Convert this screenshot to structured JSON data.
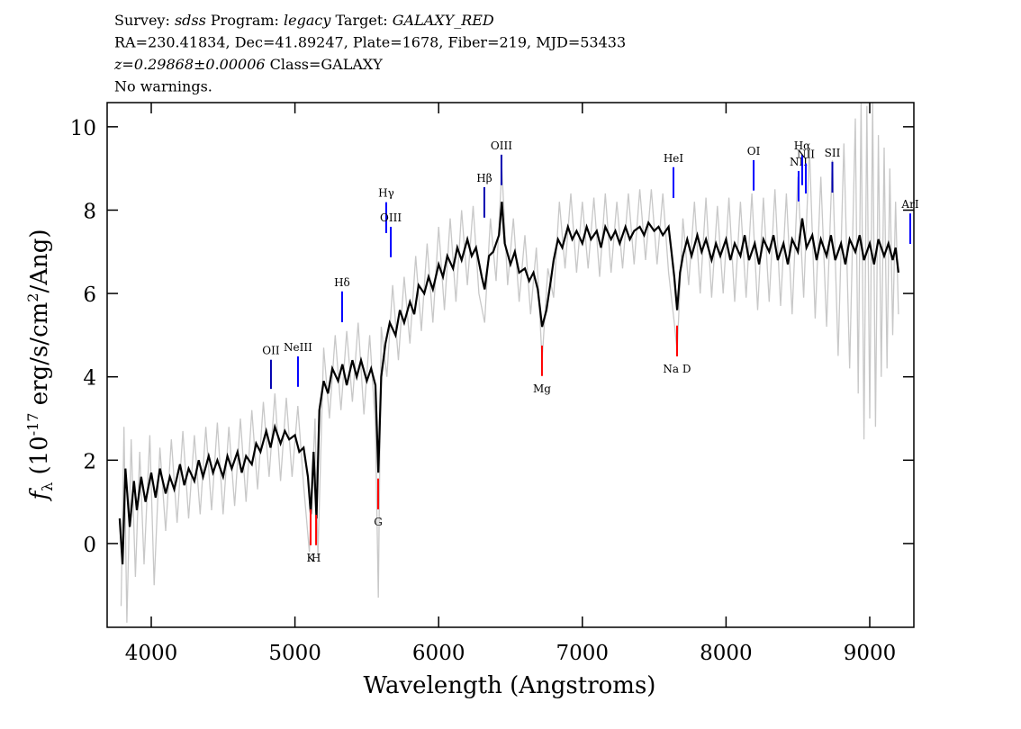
{
  "chart_data": {
    "type": "line",
    "header": [
      [
        {
          "text": "Survey: "
        },
        {
          "text": "sdss",
          "italic": true
        },
        {
          "text": " Program: "
        },
        {
          "text": "legacy",
          "italic": true
        },
        {
          "text": " Target: "
        },
        {
          "text": "GALAXY_RED",
          "italic": true
        }
      ],
      [
        {
          "text": "RA=230.41834, Dec=41.89247, Plate=1678, Fiber=219, MJD=53433"
        }
      ],
      [
        {
          "text": "z=0.29868±0.00006",
          "italic": true
        },
        {
          "text": " Class=GALAXY"
        }
      ],
      [
        {
          "text": "No warnings."
        }
      ]
    ],
    "xlabel": "Wavelength (Angstroms)",
    "ylabel": [
      {
        "text": "f",
        "italic": true
      },
      {
        "text": "λ",
        "shift": "sub"
      },
      {
        "text": " (10"
      },
      {
        "text": "-17",
        "shift": "super"
      },
      {
        "text": " erg/s/cm"
      },
      {
        "text": "2",
        "shift": "super"
      },
      {
        "text": "/Ang)"
      }
    ],
    "xlim": [
      3693,
      9307
    ],
    "ylim": [
      -2.01,
      10.58
    ],
    "xticks": [
      4000,
      5000,
      6000,
      7000,
      8000,
      9000
    ],
    "yticks": [
      0,
      2,
      4,
      6,
      8,
      10
    ],
    "series": [
      {
        "color": "#c8c8c8",
        "x": [
          3790,
          3810,
          3830,
          3860,
          3890,
          3920,
          3950,
          3990,
          4020,
          4060,
          4100,
          4140,
          4180,
          4220,
          4260,
          4300,
          4340,
          4380,
          4420,
          4460,
          4500,
          4540,
          4580,
          4620,
          4660,
          4700,
          4740,
          4780,
          4820,
          4860,
          4900,
          4940,
          4980,
          5020,
          5060,
          5100,
          5140,
          5160,
          5200,
          5240,
          5280,
          5320,
          5360,
          5400,
          5440,
          5480,
          5520,
          5560,
          5580,
          5600,
          5640,
          5680,
          5720,
          5760,
          5800,
          5840,
          5880,
          5920,
          5960,
          6000,
          6040,
          6080,
          6120,
          6160,
          6200,
          6240,
          6280,
          6320,
          6360,
          6400,
          6440,
          6480,
          6520,
          6560,
          6600,
          6640,
          6680,
          6720,
          6760,
          6800,
          6840,
          6880,
          6920,
          6960,
          7000,
          7040,
          7080,
          7120,
          7160,
          7200,
          7240,
          7280,
          7320,
          7360,
          7400,
          7440,
          7480,
          7520,
          7560,
          7600,
          7640,
          7660,
          7700,
          7740,
          7780,
          7820,
          7860,
          7900,
          7940,
          7980,
          8020,
          8060,
          8100,
          8140,
          8180,
          8220,
          8260,
          8300,
          8340,
          8380,
          8420,
          8460,
          8500,
          8540,
          8580,
          8620,
          8660,
          8700,
          8740,
          8780,
          8820,
          8860,
          8900,
          8920,
          8940,
          8960,
          8980,
          9000,
          9020,
          9040,
          9060,
          9080,
          9100,
          9120,
          9140,
          9160,
          9180,
          9200
        ],
        "values": [
          -1.5,
          2.8,
          -1.9,
          2.5,
          -0.8,
          2.2,
          -0.5,
          2.6,
          -1.0,
          2.3,
          0.3,
          2.5,
          0.5,
          2.7,
          0.6,
          2.6,
          0.7,
          2.8,
          0.8,
          2.9,
          0.7,
          2.8,
          0.9,
          3.0,
          1.0,
          3.2,
          1.3,
          3.4,
          1.6,
          3.6,
          1.5,
          3.5,
          1.6,
          3.3,
          1.4,
          -0.2,
          3.0,
          -0.3,
          4.7,
          3.0,
          5.0,
          3.2,
          5.1,
          3.4,
          5.3,
          3.1,
          5.0,
          2.8,
          -1.3,
          5.2,
          4.0,
          6.2,
          4.4,
          6.4,
          4.8,
          6.9,
          5.1,
          7.2,
          5.3,
          7.6,
          5.6,
          7.8,
          5.8,
          8.0,
          6.2,
          8.1,
          6.0,
          5.3,
          7.8,
          6.3,
          9.0,
          6.2,
          7.8,
          5.8,
          7.4,
          5.5,
          7.1,
          4.4,
          6.6,
          5.9,
          8.2,
          6.6,
          8.4,
          6.5,
          8.2,
          6.6,
          8.3,
          6.4,
          8.4,
          6.5,
          8.2,
          6.6,
          8.4,
          6.7,
          8.5,
          6.8,
          8.5,
          6.7,
          8.4,
          6.5,
          5.3,
          4.6,
          7.8,
          6.2,
          8.2,
          6.0,
          8.3,
          5.9,
          8.1,
          6.0,
          8.3,
          5.8,
          8.2,
          5.9,
          8.4,
          5.6,
          8.3,
          5.8,
          8.5,
          5.7,
          8.4,
          5.5,
          8.8,
          5.9,
          9.5,
          5.4,
          8.8,
          5.2,
          9.2,
          4.5,
          9.6,
          4.2,
          10.2,
          3.6,
          10.6,
          2.5,
          10.5,
          3.0,
          10.6,
          2.8,
          9.8,
          4.0,
          9.5,
          4.2,
          9.0,
          5.0,
          8.2,
          5.5
        ]
      },
      {
        "color": "#000000",
        "x": [
          3780,
          3800,
          3820,
          3850,
          3880,
          3900,
          3930,
          3960,
          4000,
          4030,
          4060,
          4100,
          4130,
          4160,
          4200,
          4230,
          4260,
          4300,
          4330,
          4360,
          4400,
          4430,
          4460,
          4500,
          4530,
          4560,
          4600,
          4630,
          4660,
          4700,
          4730,
          4760,
          4800,
          4830,
          4860,
          4900,
          4930,
          4960,
          5000,
          5030,
          5060,
          5090,
          5110,
          5130,
          5150,
          5170,
          5200,
          5230,
          5260,
          5300,
          5330,
          5360,
          5400,
          5430,
          5460,
          5500,
          5530,
          5560,
          5580,
          5600,
          5630,
          5660,
          5700,
          5730,
          5760,
          5800,
          5830,
          5860,
          5900,
          5930,
          5960,
          6000,
          6030,
          6060,
          6100,
          6130,
          6160,
          6200,
          6230,
          6260,
          6300,
          6320,
          6350,
          6380,
          6420,
          6440,
          6460,
          6500,
          6530,
          6560,
          6600,
          6630,
          6660,
          6690,
          6720,
          6750,
          6780,
          6800,
          6830,
          6860,
          6900,
          6930,
          6960,
          7000,
          7030,
          7060,
          7100,
          7130,
          7160,
          7200,
          7230,
          7260,
          7300,
          7330,
          7360,
          7400,
          7430,
          7460,
          7500,
          7530,
          7560,
          7600,
          7620,
          7640,
          7660,
          7680,
          7700,
          7730,
          7760,
          7800,
          7830,
          7860,
          7900,
          7930,
          7960,
          8000,
          8030,
          8060,
          8100,
          8130,
          8160,
          8200,
          8230,
          8260,
          8300,
          8330,
          8360,
          8400,
          8430,
          8460,
          8500,
          8530,
          8560,
          8600,
          8630,
          8660,
          8700,
          8730,
          8760,
          8800,
          8830,
          8860,
          8900,
          8930,
          8960,
          9000,
          9030,
          9060,
          9100,
          9130,
          9160,
          9180,
          9200
        ],
        "values": [
          0.6,
          -0.5,
          1.8,
          0.4,
          1.5,
          0.8,
          1.6,
          1.0,
          1.7,
          1.1,
          1.8,
          1.2,
          1.6,
          1.3,
          1.9,
          1.4,
          1.8,
          1.5,
          2.0,
          1.6,
          2.1,
          1.7,
          2.0,
          1.6,
          2.1,
          1.8,
          2.2,
          1.7,
          2.1,
          1.9,
          2.4,
          2.2,
          2.7,
          2.3,
          2.8,
          2.4,
          2.7,
          2.5,
          2.6,
          2.2,
          2.3,
          1.6,
          0.7,
          2.2,
          0.6,
          3.2,
          3.9,
          3.6,
          4.2,
          3.9,
          4.3,
          3.8,
          4.4,
          4.0,
          4.4,
          3.9,
          4.2,
          3.8,
          1.7,
          4.0,
          4.8,
          5.3,
          5.0,
          5.6,
          5.3,
          5.8,
          5.5,
          6.2,
          6.0,
          6.4,
          6.1,
          6.7,
          6.4,
          6.9,
          6.6,
          7.1,
          6.8,
          7.3,
          6.9,
          7.1,
          6.4,
          6.1,
          6.9,
          7.0,
          7.4,
          8.2,
          7.2,
          6.7,
          7.0,
          6.5,
          6.6,
          6.3,
          6.5,
          6.1,
          5.2,
          5.6,
          6.3,
          6.8,
          7.3,
          7.1,
          7.6,
          7.3,
          7.5,
          7.2,
          7.6,
          7.3,
          7.5,
          7.1,
          7.6,
          7.3,
          7.5,
          7.2,
          7.6,
          7.3,
          7.5,
          7.6,
          7.4,
          7.7,
          7.5,
          7.6,
          7.4,
          7.6,
          7.0,
          6.4,
          5.6,
          6.5,
          6.9,
          7.3,
          6.9,
          7.4,
          7.0,
          7.3,
          6.8,
          7.2,
          6.9,
          7.3,
          6.8,
          7.2,
          6.9,
          7.4,
          6.8,
          7.2,
          6.7,
          7.3,
          7.0,
          7.4,
          6.8,
          7.2,
          6.7,
          7.3,
          7.0,
          7.8,
          7.1,
          7.4,
          6.8,
          7.3,
          6.9,
          7.4,
          6.8,
          7.2,
          6.7,
          7.3,
          7.0,
          7.4,
          6.8,
          7.2,
          6.7,
          7.3,
          6.9,
          7.2,
          6.8,
          7.1,
          6.5
        ]
      }
    ],
    "annotations": [
      {
        "label": "OII",
        "x": 4833,
        "y": [
          3.71,
          4.41
        ],
        "color": "#0000b0",
        "label_pos": "above"
      },
      {
        "label": "NeIII",
        "x": 5021,
        "y": [
          3.76,
          4.49
        ],
        "color": "#0000ff",
        "label_pos": "above"
      },
      {
        "label": "Hδ",
        "x": 5328,
        "y": [
          5.31,
          6.05
        ],
        "color": "#0000ff",
        "label_pos": "above"
      },
      {
        "label": "Hγ",
        "x": 5635,
        "y": [
          7.45,
          8.19
        ],
        "color": "#0000ff",
        "label_pos": "above"
      },
      {
        "label": "OIII",
        "x": 5667,
        "y": [
          6.87,
          7.6
        ],
        "color": "#0000ff",
        "label_pos": "above"
      },
      {
        "label": "Hβ",
        "x": 6318,
        "y": [
          7.82,
          8.55
        ],
        "color": "#0000b0",
        "label_pos": "above"
      },
      {
        "label": "OIII",
        "x": 6437,
        "y": [
          8.6,
          9.33
        ],
        "color": "#0000b0",
        "label_pos": "above"
      },
      {
        "label": "HeI",
        "x": 7634,
        "y": [
          8.29,
          9.03
        ],
        "color": "#0000ff",
        "label_pos": "above"
      },
      {
        "label": "OI",
        "x": 8192,
        "y": [
          8.47,
          9.2
        ],
        "color": "#0000ff",
        "label_pos": "above"
      },
      {
        "label": "NII",
        "x": 8505,
        "y": [
          8.21,
          8.94
        ],
        "color": "#0000ff",
        "label_pos": "above"
      },
      {
        "label": "Hα",
        "x": 8530,
        "y": [
          8.6,
          9.33
        ],
        "color": "#0000ff",
        "label_pos": "above"
      },
      {
        "label": "NII",
        "x": 8555,
        "y": [
          8.4,
          9.12
        ],
        "color": "#0000ff",
        "label_pos": "above"
      },
      {
        "label": "SII",
        "x": 8740,
        "y": [
          8.42,
          9.16
        ],
        "color": "#0000b0",
        "label_pos": "above"
      },
      {
        "label": "ArI",
        "x": 9282,
        "y": [
          7.19,
          7.92
        ],
        "color": "#0000ff",
        "label_pos": "above"
      },
      {
        "label": "K",
        "x": 5109,
        "y": [
          -0.04,
          0.82
        ],
        "color": "#ff0000",
        "label_pos": "below"
      },
      {
        "label": "H",
        "x": 5147,
        "y": [
          -0.04,
          0.69
        ],
        "color": "#ff0000",
        "label_pos": "below"
      },
      {
        "label": "G",
        "x": 5579,
        "y": [
          0.82,
          1.56
        ],
        "color": "#ff0000",
        "label_pos": "below"
      },
      {
        "label": "Mg",
        "x": 6719,
        "y": [
          4.02,
          4.75
        ],
        "color": "#ff0000",
        "label_pos": "below"
      },
      {
        "label": "Na D",
        "x": 7659,
        "y": [
          4.49,
          5.23
        ],
        "color": "#ff0000",
        "label_pos": "below"
      }
    ]
  }
}
